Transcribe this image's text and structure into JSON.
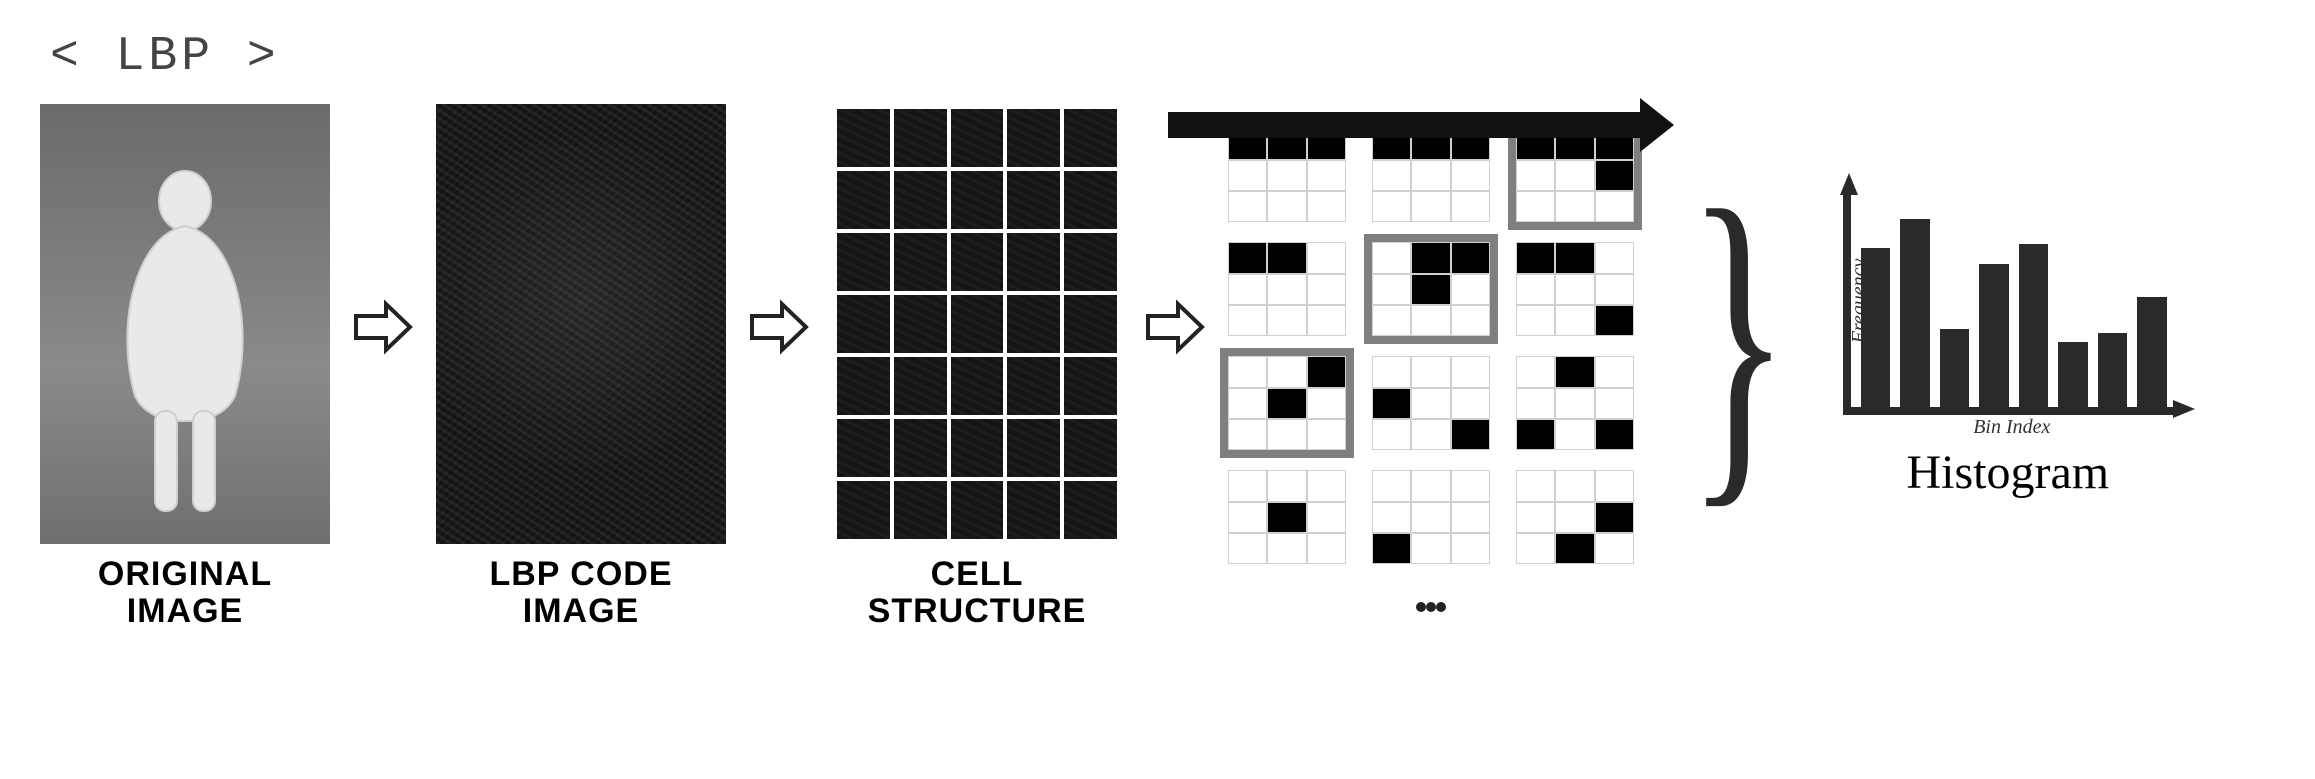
{
  "header": "< LBP >",
  "panels": {
    "original": {
      "caption": "ORIGINAL\nIMAGE"
    },
    "lbp": {
      "caption": "LBP CODE\nIMAGE"
    },
    "cells": {
      "caption": "CELL\nSTRUCTURE",
      "cols": 5,
      "rows": 7,
      "grid_color": "#ffffff",
      "bg_color": "#151515"
    }
  },
  "lbp_patches": {
    "rows": 4,
    "cols": 3,
    "highlight_indices": [
      2,
      4,
      6
    ],
    "patterns": [
      "bbbwwwwww",
      "bbbwwwwww",
      "bbbwwbwww",
      "bbwwwwwww",
      "wbbwbwwww",
      "bbwwwwwwb",
      "wwbwbwwww",
      "wwwbwwwwb",
      "wbwwwwbwb",
      "wwwwbwwww",
      "wwwwwwbww",
      "wwwwwbwbw"
    ],
    "cell_light": "#ffffff",
    "cell_dark": "#000000",
    "cell_border": "#d0d0d0",
    "highlight_color": "#7f7f7f"
  },
  "histogram": {
    "label": "Histogram",
    "xlabel": "Bin Index",
    "ylabel": "Frequency",
    "values": [
      0.78,
      0.92,
      0.38,
      0.7,
      0.8,
      0.32,
      0.36,
      0.54
    ],
    "bar_color": "#2a2a2a",
    "axis_color": "#2a2a2a"
  },
  "colors": {
    "background": "#ffffff",
    "text": "#000000",
    "header_text": "#444444"
  }
}
